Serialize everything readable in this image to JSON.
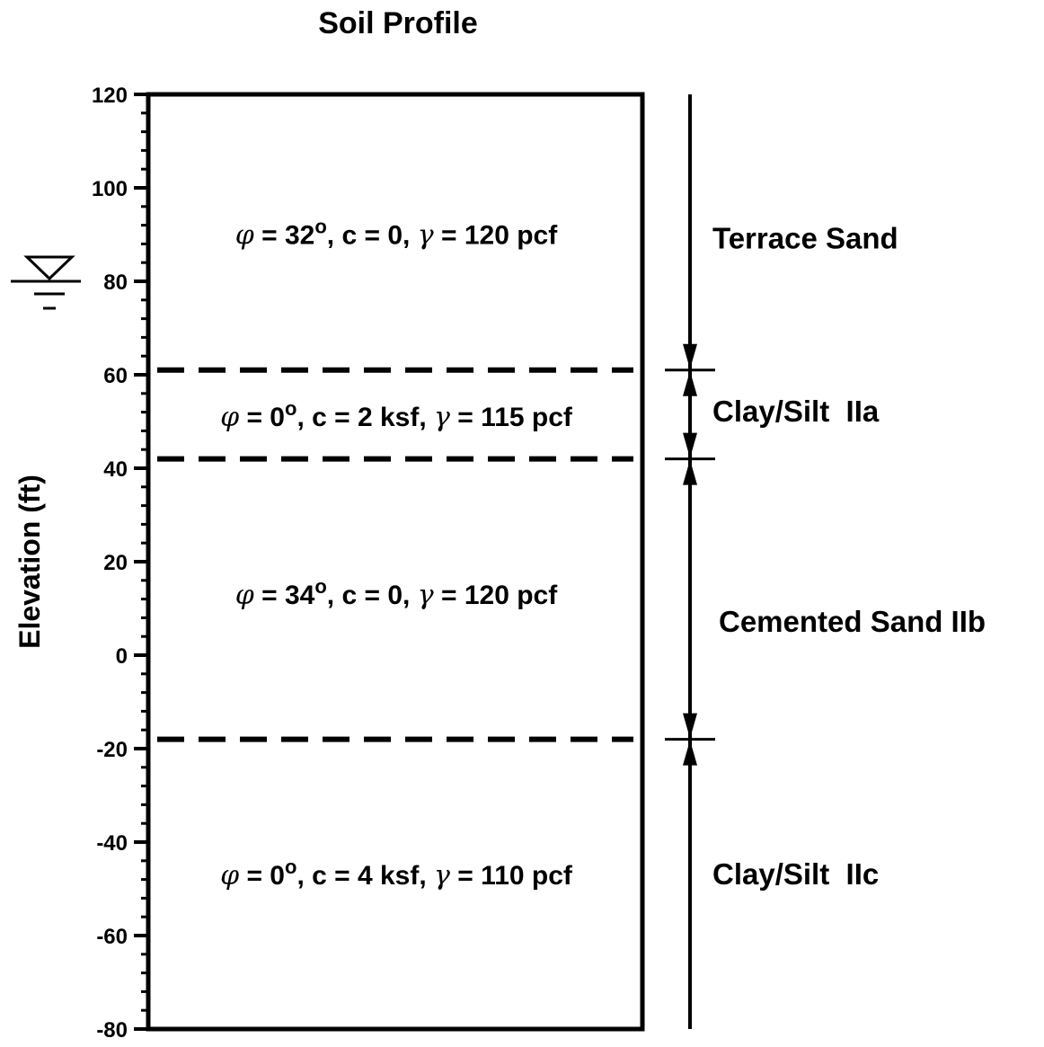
{
  "title": "Soil Profile",
  "y_axis": {
    "label": "Elevation (ft)",
    "min": -80,
    "max": 120,
    "major_ticks": [
      120,
      100,
      80,
      60,
      40,
      20,
      0,
      -20,
      -40,
      -60,
      -80
    ],
    "tick_labels": [
      "120",
      "100",
      "80",
      "60",
      "40",
      "20",
      "0",
      "-20",
      "-40",
      "-60",
      "-80"
    ],
    "minor_tick_step": 4
  },
  "water_table": {
    "elevation": 80,
    "symbol": "water-table-symbol"
  },
  "boundaries": [
    61,
    42,
    -18
  ],
  "layers": [
    {
      "name": "Terrace Sand",
      "top": 120,
      "bottom": 61,
      "label_elevation": 87,
      "props_elevation": 88,
      "phi_symbol": "φ",
      "props_part1": " = 32",
      "degree": "o",
      "props_part2": ", c = 0, ",
      "gamma_symbol": "γ",
      "props_part3": " = 120 pcf"
    },
    {
      "name": "Clay/Silt  IIa",
      "top": 61,
      "bottom": 42,
      "label_elevation": 50,
      "props_elevation": 49,
      "phi_symbol": "φ",
      "props_part1": " = 0",
      "degree": "o",
      "props_part2": ", c = 2 ksf, ",
      "gamma_symbol": "γ",
      "props_part3": " = 115 pcf"
    },
    {
      "name": "Cemented Sand IIb",
      "top": 42,
      "bottom": -18,
      "label_elevation": 5,
      "props_elevation": 11,
      "phi_symbol": "φ",
      "props_part1": " = 34",
      "degree": "o",
      "props_part2": ", c = 0, ",
      "gamma_symbol": "γ",
      "props_part3": " = 120 pcf"
    },
    {
      "name": "Clay/Silt  IIc",
      "top": -18,
      "bottom": -80,
      "label_elevation": -49,
      "props_elevation": -49,
      "phi_symbol": "φ",
      "props_part1": " = 0",
      "degree": "o",
      "props_part2": ", c = 4 ksf, ",
      "gamma_symbol": "γ",
      "props_part3": " = 110 pcf"
    }
  ],
  "colors": {
    "ink": "#000000",
    "background": "#ffffff"
  }
}
